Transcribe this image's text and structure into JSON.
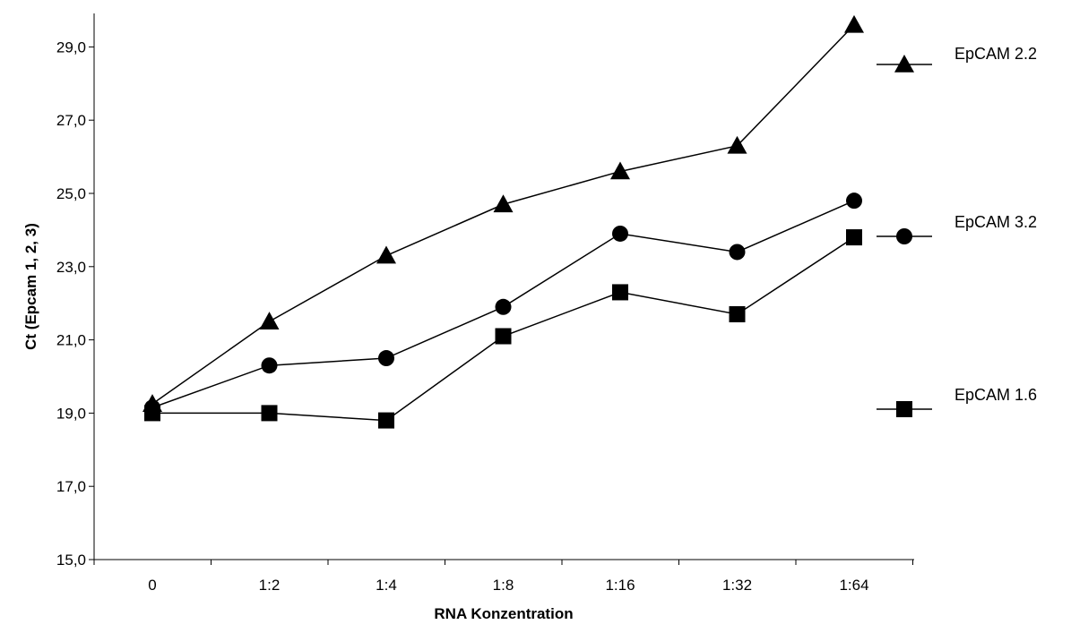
{
  "chart_data": {
    "type": "line",
    "xlabel": "RNA Konzentration",
    "ylabel": "Ct (Epcam 1, 2, 3)",
    "categories": [
      "0",
      "1:2",
      "1:4",
      "1:8",
      "1:16",
      "1:32",
      "1:64"
    ],
    "ylim": [
      15,
      30
    ],
    "yticks": [
      "15,0",
      "17,0",
      "19,0",
      "21,0",
      "23,0",
      "25,0",
      "27,0",
      "29,0"
    ],
    "ytick_values": [
      15,
      17,
      19,
      21,
      23,
      25,
      27,
      29
    ],
    "grid": false,
    "legend_position": "right",
    "series": [
      {
        "name": "EpCAM 2.2",
        "marker": "triangle",
        "color": "#000000",
        "values": [
          19.25,
          21.5,
          23.3,
          24.7,
          25.6,
          26.3,
          29.6
        ]
      },
      {
        "name": "EpCAM 3.2",
        "marker": "circle",
        "color": "#000000",
        "values": [
          19.15,
          20.3,
          20.5,
          21.9,
          23.9,
          23.4,
          24.8
        ]
      },
      {
        "name": "EpCAM 1.6",
        "marker": "square",
        "color": "#000000",
        "values": [
          19.0,
          19.0,
          18.8,
          21.1,
          22.3,
          21.7,
          23.8
        ]
      }
    ]
  }
}
